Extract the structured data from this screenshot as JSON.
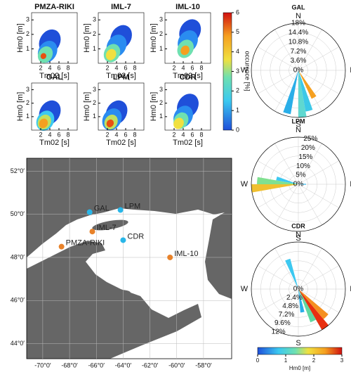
{
  "chart_data": [
    {
      "type": "heatmap",
      "title": "PMZA-RIKI",
      "xlabel": "Tm02 [s]",
      "ylabel": "Hm0 [m]",
      "xlim": [
        0,
        10
      ],
      "ylim": [
        0,
        3.5
      ],
      "xticks": [
        2,
        4,
        6,
        8
      ],
      "yticks": [
        1,
        2,
        3
      ],
      "x": [
        4,
        3.5,
        3,
        2.6
      ],
      "y": [
        1.5,
        0.8,
        0.6,
        0.5
      ],
      "values": [
        0.3,
        1,
        2.5,
        5.5
      ]
    },
    {
      "type": "heatmap",
      "title": "IML-7",
      "xlabel": "Tm02 [s]",
      "ylabel": "Hm0 [m]",
      "xlim": [
        0,
        10
      ],
      "ylim": [
        0,
        3.5
      ],
      "xticks": [
        2,
        4,
        6,
        8
      ],
      "yticks": [
        1,
        2,
        3
      ],
      "x": [
        5,
        4,
        3,
        2.8
      ],
      "y": [
        1.8,
        1.2,
        0.7,
        0.6
      ],
      "values": [
        0.3,
        0.8,
        2,
        4
      ]
    },
    {
      "type": "heatmap",
      "title": "IML-10",
      "xlabel": "Tm02 [s]",
      "ylabel": "Hm0 [m]",
      "xlim": [
        0,
        10
      ],
      "ylim": [
        0,
        3.5
      ],
      "xticks": [
        2,
        4,
        6,
        8
      ],
      "yticks": [
        1,
        2,
        3
      ],
      "x": [
        5.5,
        5,
        4.5,
        4.4
      ],
      "y": [
        2.2,
        1.5,
        1,
        0.9
      ],
      "values": [
        0.3,
        0.8,
        2,
        4.5
      ]
    },
    {
      "type": "heatmap",
      "title": "GAL",
      "xlabel": "Tm02 [s]",
      "ylabel": "Hm0 [m]",
      "xlim": [
        0,
        10
      ],
      "ylim": [
        0,
        3.5
      ],
      "xticks": [
        2,
        4,
        6,
        8
      ],
      "yticks": [
        1,
        2,
        3
      ],
      "x": [
        4,
        3,
        2.8,
        2.6
      ],
      "y": [
        1.3,
        0.7,
        0.6,
        0.5
      ],
      "values": [
        0.3,
        1.5,
        3,
        4.5
      ]
    },
    {
      "type": "heatmap",
      "title": "LPM",
      "xlabel": "Tm02 [s]",
      "ylabel": "Hm0 [m]",
      "xlim": [
        0,
        10
      ],
      "ylim": [
        0,
        3.5
      ],
      "xticks": [
        2,
        4,
        6,
        8
      ],
      "yticks": [
        1,
        2,
        3
      ],
      "x": [
        4,
        3,
        2.8,
        2.6
      ],
      "y": [
        1.3,
        0.8,
        0.6,
        0.5
      ],
      "values": [
        0.3,
        1,
        3,
        5
      ]
    },
    {
      "type": "heatmap",
      "title": "CDR",
      "xlabel": "Tm02 [s]",
      "ylabel": "Hm0 [m]",
      "xlim": [
        0,
        10
      ],
      "ylim": [
        0,
        3.5
      ],
      "xticks": [
        2,
        4,
        6,
        8
      ],
      "yticks": [
        1,
        2,
        3
      ],
      "x": [
        5,
        4,
        3.5,
        3
      ],
      "y": [
        1.8,
        1,
        0.7,
        0.5
      ],
      "values": [
        0.3,
        1,
        2.5,
        4
      ]
    },
    {
      "type": "colorbar",
      "label": "occurence [%]",
      "ylim": [
        0,
        6
      ],
      "yticks": [
        0,
        1,
        2,
        3,
        4,
        5,
        6
      ]
    },
    {
      "type": "map",
      "xlim": [
        -71.2,
        -55.9
      ],
      "ylim": [
        43.3,
        52.6
      ],
      "xticks": [
        {
          "value": -70,
          "label": "-70°0′"
        },
        {
          "value": -68,
          "label": "-68°0′"
        },
        {
          "value": -66,
          "label": "-66°0′"
        },
        {
          "value": -64,
          "label": "-64°0′"
        },
        {
          "value": -62,
          "label": "-62°0′"
        },
        {
          "value": -60,
          "label": "-60°0′"
        },
        {
          "value": -58,
          "label": "-58°0′"
        }
      ],
      "yticks": [
        {
          "value": 44,
          "label": "44°0′"
        },
        {
          "value": 46,
          "label": "46°0′"
        },
        {
          "value": 48,
          "label": "48°0′"
        },
        {
          "value": 50,
          "label": "50°0′"
        },
        {
          "value": 52,
          "label": "52°0′"
        }
      ],
      "stations": [
        "GAL",
        "LPM",
        "IML-7",
        "CDR",
        "PMZA-RIKI",
        "IML-10"
      ],
      "x": [
        -66.5,
        -64.2,
        -66.3,
        -64.0,
        -68.6,
        -60.5
      ],
      "y": [
        50.1,
        50.2,
        49.2,
        48.8,
        48.5,
        48.0
      ],
      "colors": [
        "#29b6e8",
        "#29b6e8",
        "#e8822a",
        "#29b6e8",
        "#e8822a",
        "#e8822a"
      ]
    },
    {
      "type": "polar",
      "title": "GAL",
      "directions": [
        "N",
        "E",
        "S",
        "W"
      ],
      "rlim": [
        0,
        18
      ],
      "rticks": [
        {
          "value": 3.6,
          "label": "3.6%"
        },
        {
          "value": 7.2,
          "label": "7.2%"
        },
        {
          "value": 10.8,
          "label": "10.8%"
        },
        {
          "value": 14.4,
          "label": "14.4%"
        },
        {
          "value": 18,
          "label": "18%"
        }
      ],
      "zero_label": "0%",
      "x": [
        195,
        175,
        165,
        150
      ],
      "values": [
        17,
        18,
        16,
        12
      ],
      "colors": [
        "#2aaee8",
        "#5fd8d0",
        "#3cc8e8",
        "#f5a020"
      ]
    },
    {
      "type": "polar",
      "title": "LPM",
      "directions": [
        "N",
        "E",
        "S",
        "W"
      ],
      "rlim": [
        0,
        25
      ],
      "rticks": [
        {
          "value": 5,
          "label": "5%"
        },
        {
          "value": 10,
          "label": "10%"
        },
        {
          "value": 15,
          "label": "15%"
        },
        {
          "value": 20,
          "label": "20%"
        },
        {
          "value": 25,
          "label": "25%"
        }
      ],
      "zero_label": "0%",
      "x": [
        265,
        275,
        285,
        90
      ],
      "values": [
        25,
        22,
        12,
        4
      ],
      "colors": [
        "#f0c030",
        "#80e090",
        "#3cc8f0",
        "#4ac0f0"
      ]
    },
    {
      "type": "polar",
      "title": "CDR",
      "directions": [
        "N",
        "E",
        "S",
        "W"
      ],
      "rlim": [
        0,
        12
      ],
      "rticks": [
        {
          "value": 2.4,
          "label": "2.4%"
        },
        {
          "value": 4.8,
          "label": "4.8%"
        },
        {
          "value": 7.2,
          "label": "7.2%"
        },
        {
          "value": 9.6,
          "label": "9.6%"
        },
        {
          "value": 12,
          "label": "12%"
        }
      ],
      "zero_label": "0%",
      "x": [
        145,
        135,
        155,
        340,
        170
      ],
      "values": [
        12,
        10,
        9,
        8,
        6
      ],
      "colors": [
        "#e83010",
        "#f59020",
        "#60d8a0",
        "#3cc8f0",
        "#2aaee8"
      ]
    },
    {
      "type": "colorbar",
      "label": "Hm0 [m]",
      "xlim": [
        0,
        3
      ],
      "xticks": [
        0,
        1,
        2,
        3
      ]
    }
  ]
}
